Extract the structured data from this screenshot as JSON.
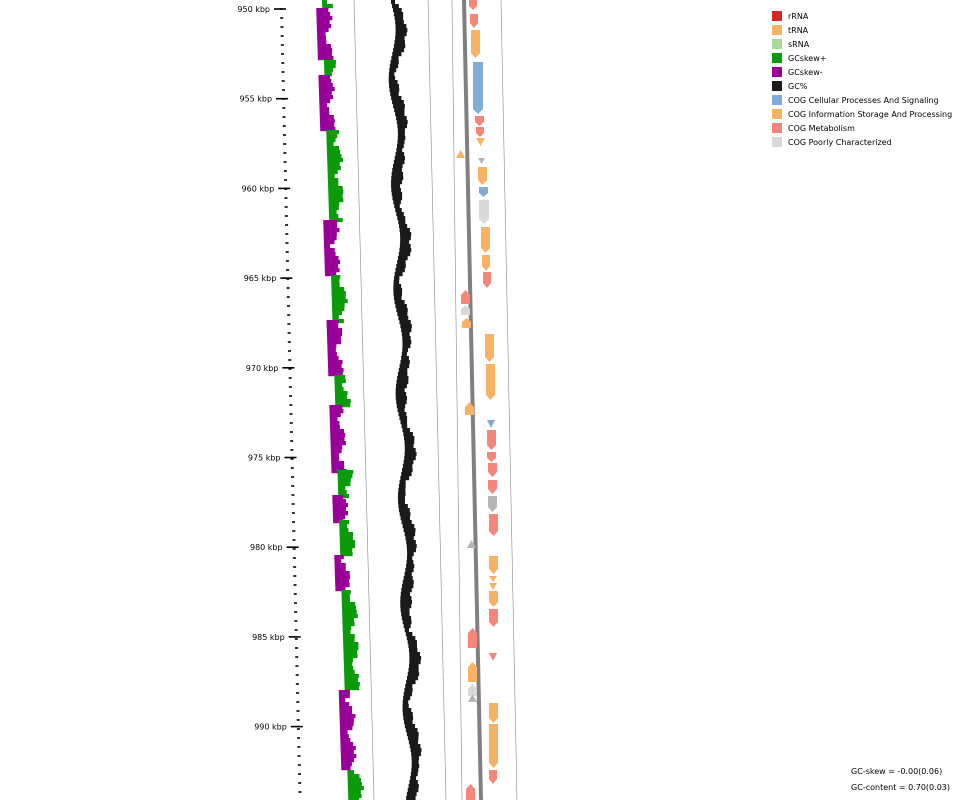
{
  "ruler": {
    "labels": [
      "950 kbp",
      "955 kbp",
      "960 kbp",
      "965 kbp",
      "970 kbp",
      "975 kbp",
      "980 kbp",
      "985 kbp",
      "990 kbp"
    ]
  },
  "legend": {
    "items": [
      {
        "label": "rRNA",
        "color": "#d62728"
      },
      {
        "label": "tRNA",
        "color": "#f7b266"
      },
      {
        "label": "sRNA",
        "color": "#a6d99a"
      },
      {
        "label": "GCskew+",
        "color": "#0a9a0a"
      },
      {
        "label": "GCskew-",
        "color": "#990099"
      },
      {
        "label": "GC%",
        "color": "#1a1a1a"
      },
      {
        "label": "COG Cellular Processes And Signaling",
        "color": "#7fadd6"
      },
      {
        "label": "COG Information Storage And Processing",
        "color": "#f7b266"
      },
      {
        "label": "COG Metabolism",
        "color": "#f4877a"
      },
      {
        "label": "COG Poorly Characterized",
        "color": "#d9d9d9"
      }
    ]
  },
  "stats": {
    "gc_skew": "GC-skew = -0.00(0.06)",
    "gc_content": "GC-content = 0.70(0.03)"
  },
  "colors": {
    "gc_content": "#1a1a1a",
    "gc_skew_pos": "#0a9a0a",
    "gc_skew_neg": "#990099",
    "backbone": "#808080"
  }
}
